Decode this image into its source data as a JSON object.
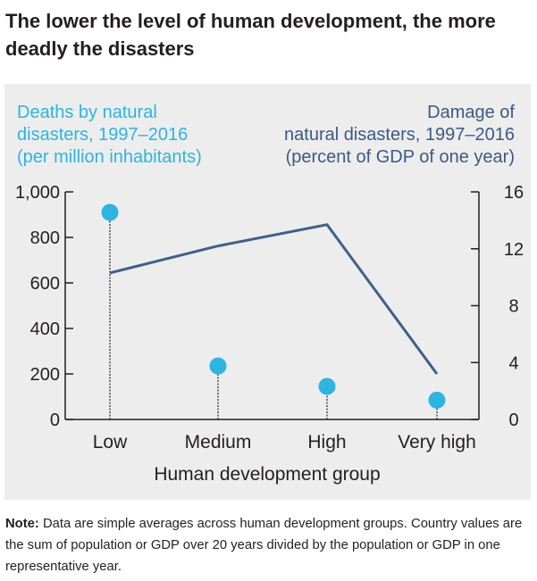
{
  "title": "The lower the level of human development, the more deadly the disasters",
  "note": {
    "label": "Note:",
    "text": "Data are simple averages across human development groups. Country values are the sum of population or GDP over 20 years divided by the population or GDP in one representative year."
  },
  "colors": {
    "left_series": "#2bb5e0",
    "right_series": "#3f5f8a",
    "axis": "#231f20",
    "panel_background": "#ededed"
  },
  "chart_data": {
    "type": "line",
    "title": "The lower the level of human development, the more deadly the disasters",
    "xlabel": "Human development group",
    "categories": [
      "Low",
      "Medium",
      "High",
      "Very high"
    ],
    "left_axis": {
      "label_lines": [
        "Deaths by natural",
        "disasters, 1997–2016",
        "(per million inhabitants)"
      ],
      "ticks": [
        "1,000",
        "800",
        "600",
        "400",
        "200",
        "0"
      ],
      "tick_values": [
        1000,
        800,
        600,
        400,
        200,
        0
      ],
      "ylim": [
        0,
        1000
      ]
    },
    "right_axis": {
      "label_lines": [
        "Damage of",
        "natural disasters, 1997–2016",
        "(percent of GDP of one year)"
      ],
      "ticks": [
        "16",
        "12",
        "8",
        "4",
        "0"
      ],
      "tick_values": [
        16,
        12,
        8,
        4,
        0
      ],
      "ylim": [
        0,
        16
      ]
    },
    "series": [
      {
        "name": "Deaths by natural disasters, 1997–2016 (per million inhabitants)",
        "axis": "left",
        "style": "lollipop",
        "values": [
          910,
          235,
          145,
          85
        ]
      },
      {
        "name": "Damage of natural disasters, 1997–2016 (percent of GDP of one year)",
        "axis": "right",
        "style": "line",
        "values": [
          10.3,
          12.2,
          13.7,
          3.2
        ]
      }
    ],
    "grid": false,
    "legend": "none"
  }
}
